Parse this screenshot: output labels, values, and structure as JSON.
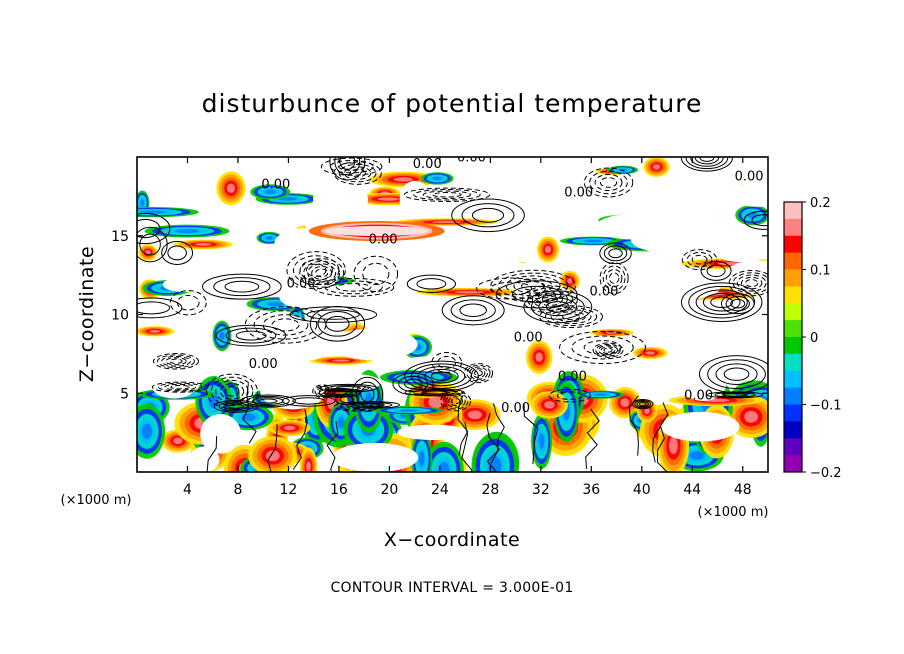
{
  "chart_data": {
    "type": "heatmap",
    "title": "disturbunce of potential temperature",
    "xlabel": "X−coordinate",
    "ylabel": "Z−coordinate",
    "x_unit": "(×1000 m)",
    "z_unit": "(×1000 m)",
    "xlim": [
      0,
      50
    ],
    "ylim": [
      0,
      20
    ],
    "x_ticks": [
      4,
      8,
      12,
      16,
      20,
      24,
      28,
      32,
      36,
      40,
      44,
      48
    ],
    "x_ticklabels": [
      "4",
      "8",
      "12",
      "16",
      "20",
      "24",
      "28",
      "32",
      "36",
      "40",
      "44",
      "48"
    ],
    "y_ticks": [
      5,
      10,
      15
    ],
    "y_ticklabels": [
      "5",
      "10",
      "15"
    ],
    "colorbar": {
      "min": -0.2,
      "max": 0.2,
      "ticks": [
        0.2,
        0.1,
        0,
        -0.1,
        -0.2
      ],
      "ticklabels": [
        "0.2",
        "0.1",
        "0",
        "−0.1",
        "−0.2"
      ],
      "colors": [
        "#ffc0c0",
        "#ff8080",
        "#ff0000",
        "#ff6600",
        "#ffa000",
        "#ffe000",
        "#c0ff00",
        "#50e000",
        "#00c800",
        "#00e0c0",
        "#00c0ff",
        "#0080ff",
        "#0030ff",
        "#0000c0",
        "#6000c0",
        "#9000b0"
      ]
    },
    "contour_interval_text": "CONTOUR INTERVAL = 3.000E-01",
    "contour_labels": [
      "0.00",
      "0.00",
      "0.00",
      "0.00",
      "0.00",
      "0.00",
      "0.00",
      "0.00",
      "0.00",
      "0.00",
      "0.00",
      "0.00",
      "0.00"
    ],
    "grid": false
  }
}
